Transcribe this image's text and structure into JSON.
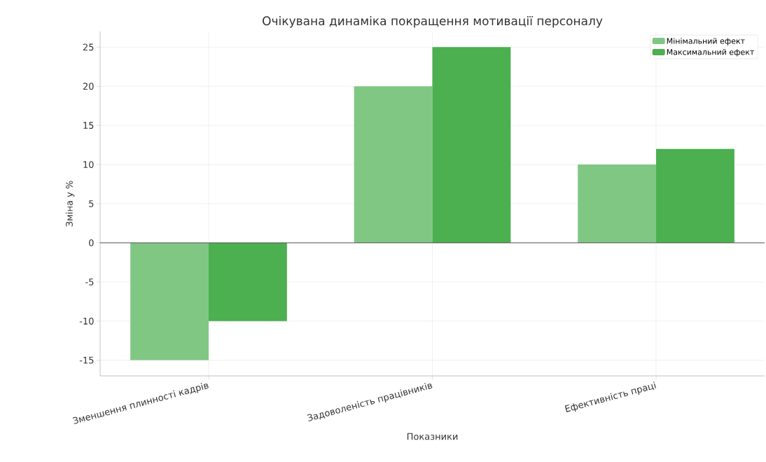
{
  "chart_data": {
    "type": "bar",
    "title": "Очікувана динаміка покращення мотивації персоналу",
    "xlabel": "Показники",
    "ylabel": "Зміна у %",
    "categories": [
      "Зменшення плинності кадрів",
      "Задоволеність працівників",
      "Ефективність праці"
    ],
    "series": [
      {
        "name": "Мінімальний ефект",
        "color": "#81c784",
        "values": [
          -15,
          20,
          10
        ]
      },
      {
        "name": "Максимальний ефект",
        "color": "#4caf50",
        "values": [
          -10,
          25,
          12
        ]
      }
    ],
    "ylim": [
      -17,
      27
    ],
    "yticks": [
      -15,
      -10,
      -5,
      0,
      5,
      10,
      15,
      20,
      25
    ],
    "ref_lines": [
      {
        "axis": "y",
        "value": 0,
        "color": "#555555"
      }
    ],
    "grid": true,
    "legend": "top right"
  }
}
